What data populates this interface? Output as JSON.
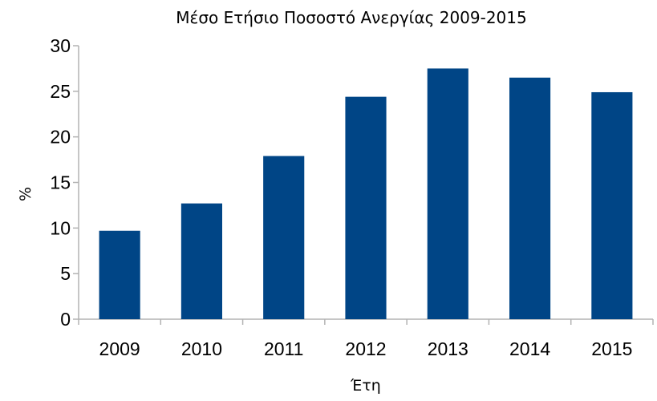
{
  "chart_data": {
    "type": "bar",
    "title": "Μέσο Ετήσιο Ποσοστό Ανεργίας 2009-2015",
    "xlabel": "Έτη",
    "ylabel": "%",
    "categories": [
      "2009",
      "2010",
      "2011",
      "2012",
      "2013",
      "2014",
      "2015"
    ],
    "series": [
      {
        "values": [
          9.7,
          12.7,
          17.9,
          24.4,
          27.5,
          26.5,
          24.9
        ]
      }
    ],
    "ylim": [
      0,
      30
    ],
    "yticks": [
      0,
      5,
      10,
      15,
      20,
      25,
      30
    ],
    "grid": false,
    "legend": "none"
  },
  "colors": {
    "bar": "#004586",
    "axis": "#b3b3b3",
    "text": "#000000",
    "background": "#ffffff"
  }
}
